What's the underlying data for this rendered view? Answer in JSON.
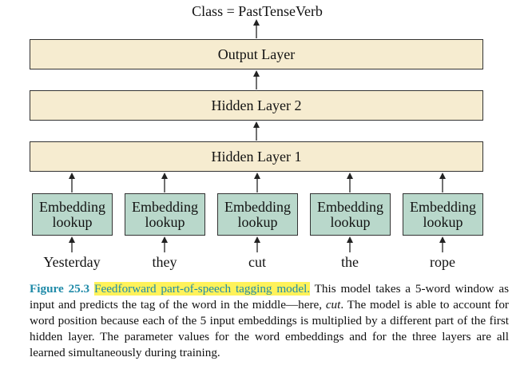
{
  "diagram": {
    "output_class": "Class = PastTenseVerb",
    "layers": {
      "output": "Output Layer",
      "hidden2": "Hidden Layer 2",
      "hidden1": "Hidden Layer 1"
    },
    "embedding_label_line1": "Embedding",
    "embedding_label_line2": "lookup",
    "words": [
      "Yesterday",
      "they",
      "cut",
      "the",
      "rope"
    ]
  },
  "caption": {
    "figure_label": "Figure 25.3",
    "figure_title": "Feedforward part-of-speech tagging model.",
    "text_1": "This model takes a 5-word window as input and predicts the tag of the word in the middle—here, ",
    "emphasis": "cut",
    "text_2": ". The model is able to account for word position because each of the 5 input embeddings is multiplied by a different part of the first hidden layer. The parameter values for the word embeddings and for the three layers are all learned simultaneously during training."
  },
  "colors": {
    "layer_fill": "#f6ecd0",
    "embedding_fill": "#b9d8cb",
    "caption_accent": "#1f8aa8",
    "highlight": "#fff25a"
  }
}
